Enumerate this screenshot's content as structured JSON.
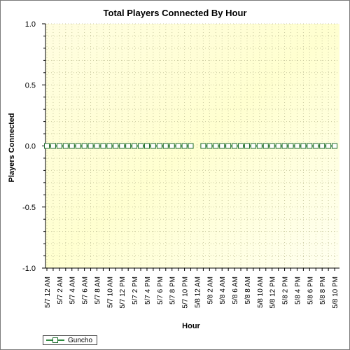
{
  "chart_data": {
    "type": "line",
    "title": "Total Players Connected By Hour",
    "xlabel": "Hour",
    "ylabel": "Players Connected",
    "ylim": [
      -1.0,
      1.0
    ],
    "y_ticks": [
      "1.0",
      "0.5",
      "0.0",
      "-0.5",
      "-1.0"
    ],
    "grid": true,
    "legend_position": "bottom-left",
    "x_tick_labels": [
      "5/7 12 AM",
      "5/7 2 AM",
      "5/7 4 AM",
      "5/7 6 AM",
      "5/7 8 AM",
      "5/7 10 AM",
      "5/7 12 PM",
      "5/7 2 PM",
      "5/7 4 PM",
      "5/7 6 PM",
      "5/7 8 PM",
      "5/7 10 PM",
      "5/8 12 AM",
      "5/8 2 AM",
      "5/8 4 AM",
      "5/8 6 AM",
      "5/8 8 AM",
      "5/8 10 AM",
      "5/8 12 PM",
      "5/8 2 PM",
      "5/8 4 PM",
      "5/8 6 PM",
      "5/8 8 PM",
      "5/8 10 PM"
    ],
    "series": [
      {
        "name": "Guncho",
        "color": "#2e8b3e",
        "segments": [
          [
            0,
            0,
            0,
            0,
            0,
            0,
            0,
            0,
            0,
            0,
            0,
            0,
            0,
            0,
            0,
            0,
            0,
            0,
            0,
            0,
            0,
            0,
            0,
            0
          ],
          [
            0,
            0,
            0,
            0,
            0,
            0,
            0,
            0,
            0,
            0,
            0,
            0,
            0,
            0,
            0,
            0,
            0,
            0,
            0,
            0,
            0,
            0
          ]
        ]
      }
    ]
  }
}
